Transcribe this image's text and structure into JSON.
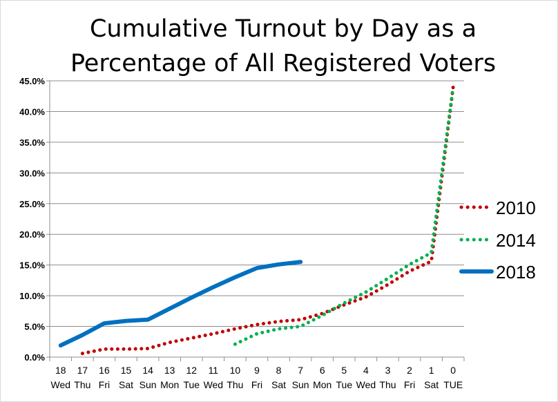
{
  "chart_data": {
    "type": "line",
    "title_lines": [
      "Cumulative Turnout by Day as a",
      "Percentage of All Registered Voters"
    ],
    "xlabel": "",
    "ylabel": "",
    "ylim": [
      0,
      45
    ],
    "y_ticks": [
      "0.0%",
      "5.0%",
      "10.0%",
      "15.0%",
      "20.0%",
      "25.0%",
      "30.0%",
      "35.0%",
      "40.0%",
      "45.0%"
    ],
    "grid": true,
    "legend_position": "right",
    "categories": [
      {
        "n": "18",
        "d": "Wed"
      },
      {
        "n": "17",
        "d": "Thu"
      },
      {
        "n": "16",
        "d": "Fri"
      },
      {
        "n": "15",
        "d": "Sat"
      },
      {
        "n": "14",
        "d": "Sun"
      },
      {
        "n": "13",
        "d": "Mon"
      },
      {
        "n": "12",
        "d": "Tue"
      },
      {
        "n": "11",
        "d": "Wed"
      },
      {
        "n": "10",
        "d": "Thu"
      },
      {
        "n": "9",
        "d": "Fri"
      },
      {
        "n": "8",
        "d": "Sat"
      },
      {
        "n": "7",
        "d": "Sun"
      },
      {
        "n": "6",
        "d": "Mon"
      },
      {
        "n": "5",
        "d": "Tue"
      },
      {
        "n": "4",
        "d": "Wed"
      },
      {
        "n": "3",
        "d": "Thu"
      },
      {
        "n": "2",
        "d": "Fri"
      },
      {
        "n": "1",
        "d": "Sat"
      },
      {
        "n": "0",
        "d": "TUE"
      }
    ],
    "series": [
      {
        "name": "2010",
        "color": "#c00000",
        "style": "dotted",
        "values": [
          null,
          0.6,
          1.3,
          1.3,
          1.4,
          2.4,
          3.1,
          3.8,
          4.6,
          5.3,
          5.8,
          6.1,
          7.1,
          8.5,
          9.8,
          11.8,
          14.0,
          15.6,
          44.0
        ]
      },
      {
        "name": "2014",
        "color": "#00b050",
        "style": "dotted",
        "values": [
          null,
          null,
          null,
          null,
          null,
          null,
          null,
          null,
          2.1,
          3.8,
          4.6,
          5.0,
          6.8,
          8.8,
          10.6,
          12.8,
          15.1,
          17.0,
          44.0
        ]
      },
      {
        "name": "2018",
        "color": "#0070c0",
        "style": "solid",
        "values": [
          1.9,
          3.6,
          5.5,
          5.9,
          6.1,
          7.9,
          9.7,
          11.4,
          13.0,
          14.5,
          15.1,
          15.5,
          null,
          null,
          null,
          null,
          null,
          null,
          null
        ]
      }
    ]
  }
}
